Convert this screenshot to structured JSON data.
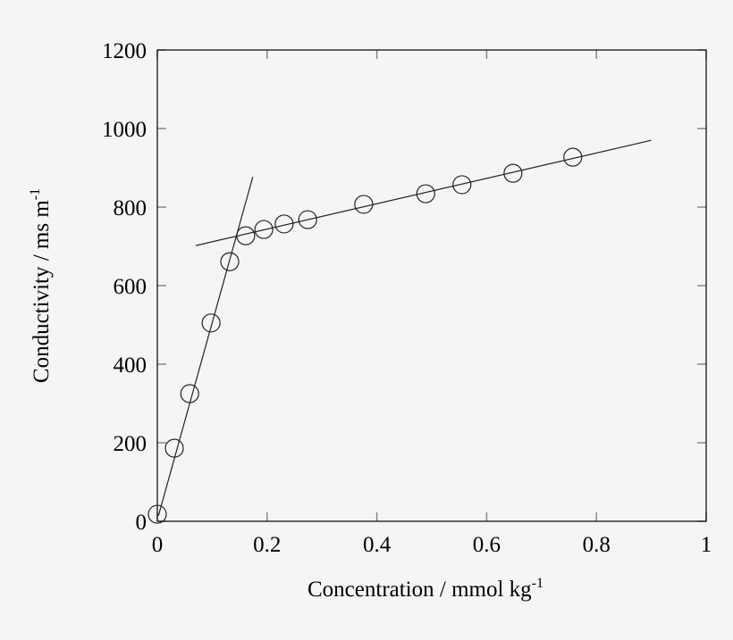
{
  "chart_data": {
    "type": "scatter",
    "title": "",
    "xlabel": "Concentration / mmol kg",
    "xlabel_superscript": "-1",
    "ylabel": "Conductivity / ms m",
    "ylabel_superscript": "-1",
    "xlim": [
      0,
      1
    ],
    "ylim": [
      0,
      1200
    ],
    "xticks": [
      "0",
      "0.2",
      "0.4",
      "0.6",
      "0.8",
      "1"
    ],
    "xtick_values": [
      0,
      0.2,
      0.4,
      0.6,
      0.8,
      1
    ],
    "yticks": [
      "0",
      "200",
      "400",
      "600",
      "800",
      "1000",
      "1200"
    ],
    "ytick_values": [
      0,
      200,
      400,
      600,
      800,
      1000,
      1200
    ],
    "grid": false,
    "marker": "open-circle",
    "points": [
      {
        "x": 0.0,
        "y": 18
      },
      {
        "x": 0.031,
        "y": 186
      },
      {
        "x": 0.059,
        "y": 325
      },
      {
        "x": 0.098,
        "y": 505
      },
      {
        "x": 0.132,
        "y": 661
      },
      {
        "x": 0.161,
        "y": 727
      },
      {
        "x": 0.194,
        "y": 743
      },
      {
        "x": 0.231,
        "y": 757
      },
      {
        "x": 0.274,
        "y": 768
      },
      {
        "x": 0.376,
        "y": 807
      },
      {
        "x": 0.489,
        "y": 834
      },
      {
        "x": 0.555,
        "y": 857
      },
      {
        "x": 0.648,
        "y": 886
      },
      {
        "x": 0.757,
        "y": 927
      }
    ],
    "fit_lines": [
      {
        "x": [
          0.002,
          0.174
        ],
        "y": [
          14,
          877
        ]
      },
      {
        "x": [
          0.07,
          0.9
        ],
        "y": [
          702,
          970
        ]
      }
    ],
    "colors": {
      "background": "#f5f5f5",
      "ink": "#000000",
      "tick": "#888888"
    }
  }
}
